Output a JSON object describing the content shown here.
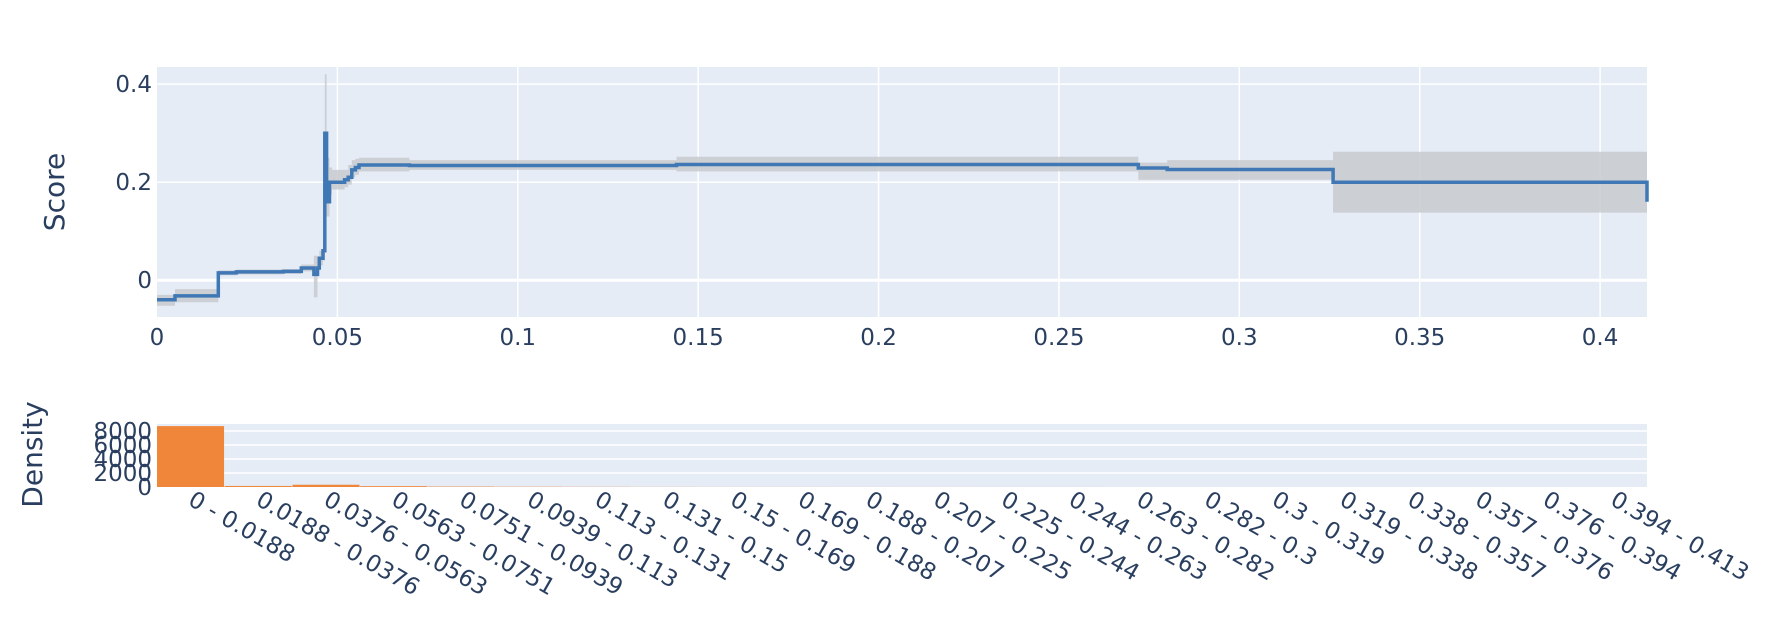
{
  "chart_data": [
    {
      "type": "line",
      "subtype": "step",
      "ylabel": "Score",
      "xlabel": "",
      "xlim": [
        0,
        0.413
      ],
      "ylim": [
        -0.075,
        0.435
      ],
      "xticks": [
        0,
        0.05,
        0.1,
        0.15,
        0.2,
        0.25,
        0.3,
        0.35,
        0.4
      ],
      "xtick_labels": [
        "0",
        "0.05",
        "0.1",
        "0.15",
        "0.2",
        "0.25",
        "0.3",
        "0.35",
        "0.4"
      ],
      "yticks": [
        0,
        0.2,
        0.4
      ],
      "ytick_labels": [
        "0",
        "0.2",
        "0.4"
      ],
      "grid": true,
      "series": [
        {
          "x": [
            0,
            0.005,
            0.017,
            0.022,
            0.035,
            0.04,
            0.042,
            0.0435,
            0.0445,
            0.045,
            0.046,
            0.0465,
            0.047,
            0.0478,
            0.0485,
            0.049,
            0.052,
            0.053,
            0.054,
            0.055,
            0.056,
            0.07,
            0.14,
            0.144,
            0.263,
            0.272,
            0.28,
            0.326,
            0.413
          ],
          "y": [
            -0.04,
            -0.032,
            0.015,
            0.017,
            0.018,
            0.025,
            0.025,
            0.012,
            0.025,
            0.045,
            0.06,
            0.3,
            0.16,
            0.2,
            0.2,
            0.2,
            0.205,
            0.21,
            0.225,
            0.23,
            0.235,
            0.234,
            0.234,
            0.236,
            0.236,
            0.229,
            0.226,
            0.2,
            0.16
          ],
          "band_lower": [
            -0.052,
            -0.045,
            0.01,
            0.012,
            0.013,
            0.018,
            0.018,
            -0.035,
            0.015,
            0.03,
            0.04,
            0.15,
            0.13,
            0.175,
            0.185,
            0.185,
            0.19,
            0.195,
            0.21,
            0.215,
            0.222,
            0.225,
            0.225,
            0.222,
            0.222,
            0.205,
            0.205,
            0.138,
            0.09
          ],
          "band_upper": [
            -0.03,
            -0.018,
            0.02,
            0.022,
            0.023,
            0.032,
            0.032,
            0.05,
            0.035,
            0.06,
            0.08,
            0.42,
            0.25,
            0.23,
            0.225,
            0.225,
            0.225,
            0.235,
            0.245,
            0.248,
            0.25,
            0.245,
            0.245,
            0.252,
            0.252,
            0.24,
            0.245,
            0.262,
            0.23
          ]
        }
      ],
      "colors": {
        "line": "#3f78b5",
        "band": "#c8cace",
        "plot_bg": "#e5ecf6",
        "grid": "#ffffff"
      }
    },
    {
      "type": "bar",
      "ylabel": "Density",
      "xlabel": "",
      "ylim": [
        0,
        9000
      ],
      "yticks": [
        0,
        2000,
        4000,
        6000,
        8000
      ],
      "ytick_labels": [
        "0",
        "2000",
        "4000",
        "6000",
        "8000"
      ],
      "categories": [
        "0 - 0.0188",
        "0.0188 - 0.0376",
        "0.0376 - 0.0563",
        "0.0563 - 0.0751",
        "0.0751 - 0.0939",
        "0.0939 - 0.113",
        "0.113 - 0.131",
        "0.131 - 0.15",
        "0.15 - 0.169",
        "0.169 - 0.188",
        "0.188 - 0.207",
        "0.207 - 0.225",
        "0.225 - 0.244",
        "0.244 - 0.263",
        "0.263 - 0.282",
        "0.282 - 0.3",
        "0.3 - 0.319",
        "0.319 - 0.338",
        "0.338 - 0.357",
        "0.357 - 0.376",
        "0.376 - 0.394",
        "0.394 - 0.413"
      ],
      "values": [
        8700,
        150,
        320,
        120,
        60,
        40,
        25,
        15,
        10,
        10,
        8,
        6,
        5,
        5,
        4,
        4,
        3,
        3,
        3,
        3,
        2,
        2
      ],
      "grid": true,
      "colors": {
        "bar": "#f0863a",
        "plot_bg": "#e5ecf6",
        "grid": "#ffffff"
      }
    }
  ]
}
